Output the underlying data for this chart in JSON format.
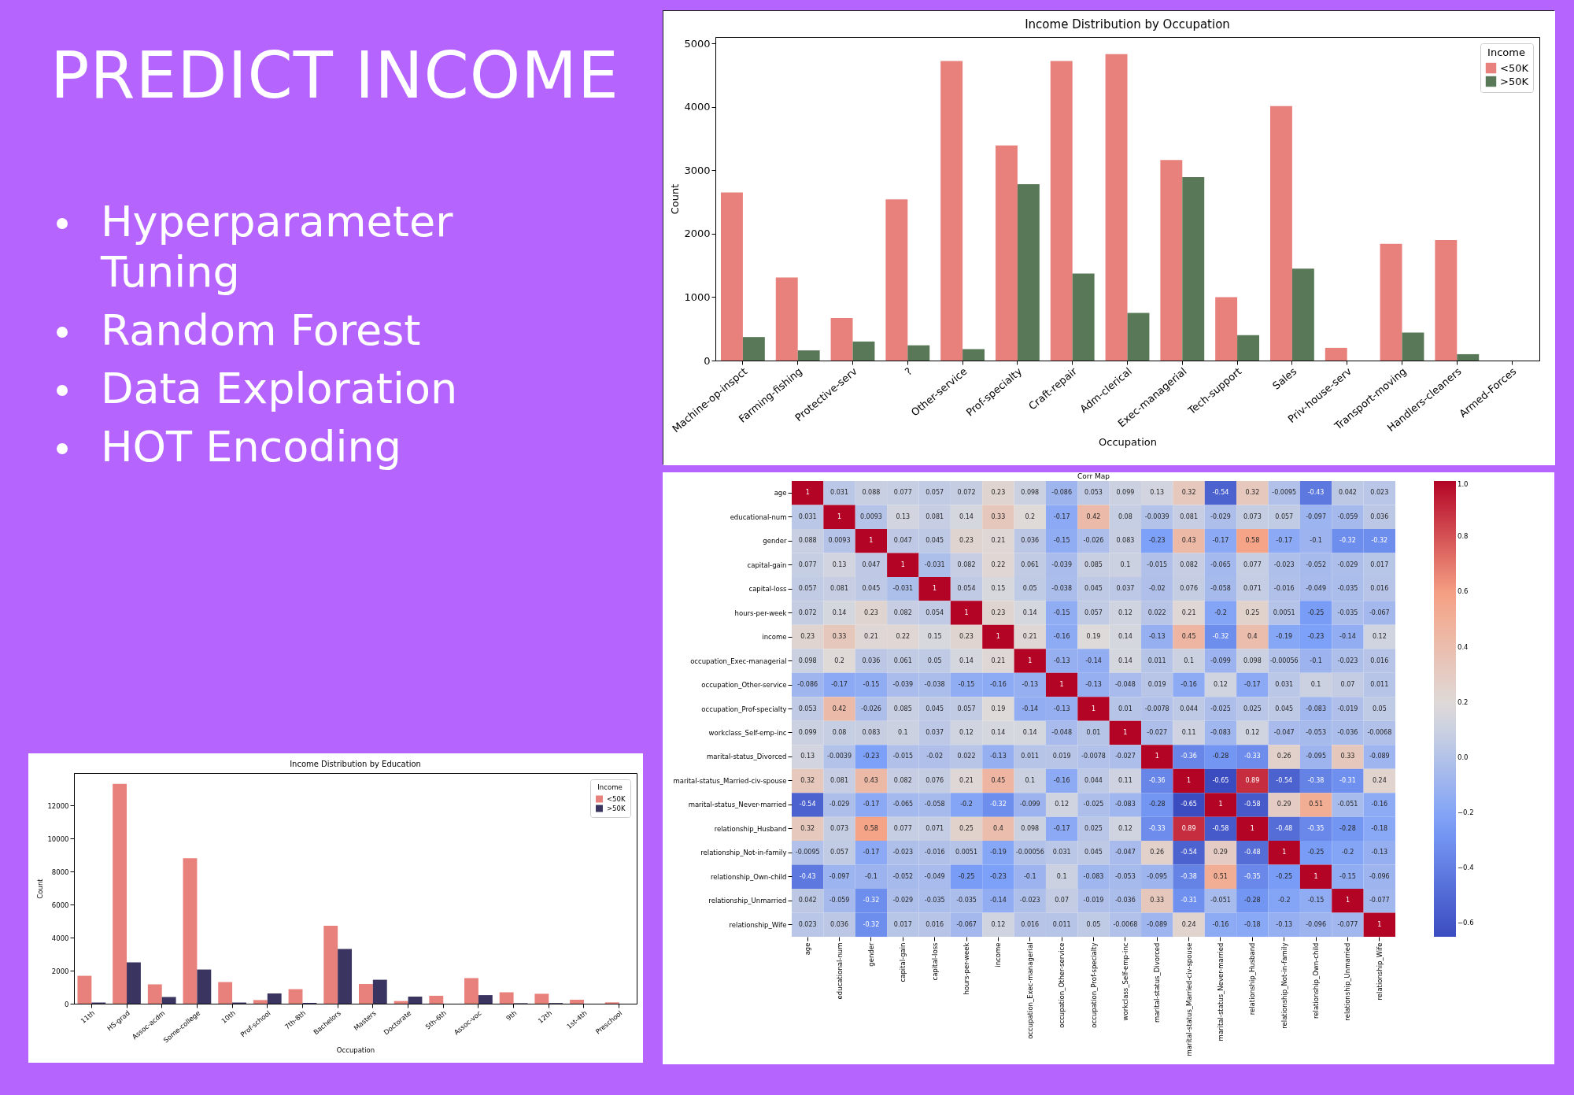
{
  "chart_data": [
    {
      "type": "other",
      "title": "PREDICT INCOME",
      "annotations": [
        "Hyperparameter Tuning",
        "Random Forest",
        "Data Exploration",
        "HOT Encoding"
      ]
    },
    {
      "type": "bar",
      "title": "Income Distribution by Occupation",
      "xlabel": "Occupation",
      "ylabel": "Count",
      "legend_title": "Income",
      "legend": "top right",
      "categories": [
        "Machine-op-inspct",
        "Farming-fishing",
        "Protective-serv",
        "?",
        "Other-service",
        "Prof-specialty",
        "Craft-repair",
        "Adm-clerical",
        "Exec-managerial",
        "Tech-support",
        "Sales",
        "Priv-house-serv",
        "Transport-moving",
        "Handlers-cleaners",
        "Armed-Forces"
      ],
      "series": [
        {
          "name": "<50K",
          "color": "#e8807c",
          "values": [
            2650,
            1310,
            670,
            2540,
            4720,
            3390,
            4720,
            4830,
            3160,
            1000,
            4010,
            200,
            1840,
            1900,
            0
          ]
        },
        {
          "name": ">50K",
          "color": "#587858",
          "values": [
            370,
            160,
            300,
            240,
            180,
            2780,
            1370,
            750,
            2890,
            400,
            1450,
            0,
            440,
            100,
            0
          ]
        }
      ],
      "ylim": [
        0,
        5100
      ],
      "yticks": [
        0,
        1000,
        2000,
        3000,
        4000,
        5000
      ]
    },
    {
      "type": "heatmap",
      "title": "Corr Map",
      "data_labels": true,
      "categories": [
        "age",
        "educational-num",
        "gender",
        "capital-gain",
        "capital-loss",
        "hours-per-week",
        "income",
        "occupation_Exec-managerial",
        "occupation_Other-service",
        "occupation_Prof-specialty",
        "workclass_Self-emp-inc",
        "marital-status_Divorced",
        "marital-status_Married-civ-spouse",
        "marital-status_Never-married",
        "relationship_Husband",
        "relationship_Not-in-family",
        "relationship_Own-child",
        "relationship_Unmarried",
        "relationship_Wife"
      ],
      "y_categories": [
        "age",
        "educational-num",
        "gender",
        "capital-gain",
        "capital-loss",
        "hours-per-week",
        "income",
        "occupation_Exec-managerial",
        "occupation_Other-service",
        "occupation_Prof-specialty",
        "workclass_Self-emp-inc",
        "marital-status_Divorced",
        "marital-status_Married-civ-spouse",
        "marital-status_Never-married",
        "relationship_Husband",
        "relationship_Not-in-family",
        "relationship_Own-child",
        "relationship_Unmarried",
        "relationship_Wife"
      ],
      "cells": [
        [
          1,
          0.031,
          0.088,
          0.077,
          0.057,
          0.072,
          0.23,
          0.098,
          -0.086,
          0.053,
          0.099,
          0.13,
          0.32,
          -0.54,
          0.32,
          -0.0095,
          -0.43,
          0.042,
          0.023
        ],
        [
          0.031,
          1,
          0.0093,
          0.13,
          0.081,
          0.14,
          0.33,
          0.2,
          -0.17,
          0.42,
          0.08,
          -0.0039,
          0.081,
          -0.029,
          0.073,
          0.057,
          -0.097,
          -0.059,
          0.036
        ],
        [
          0.088,
          0.0093,
          1,
          0.047,
          0.045,
          0.23,
          0.21,
          0.036,
          -0.15,
          -0.026,
          0.083,
          -0.23,
          0.43,
          -0.17,
          0.58,
          -0.17,
          -0.1,
          -0.32,
          -0.32
        ],
        [
          0.077,
          0.13,
          0.047,
          1,
          -0.031,
          0.082,
          0.22,
          0.061,
          -0.039,
          0.085,
          0.1,
          -0.015,
          0.082,
          -0.065,
          0.077,
          -0.023,
          -0.052,
          -0.029,
          0.017
        ],
        [
          0.057,
          0.081,
          0.045,
          -0.031,
          1,
          0.054,
          0.15,
          0.05,
          -0.038,
          0.045,
          0.037,
          -0.02,
          0.076,
          -0.058,
          0.071,
          -0.016,
          -0.049,
          -0.035,
          0.016
        ],
        [
          0.072,
          0.14,
          0.23,
          0.082,
          0.054,
          1,
          0.23,
          0.14,
          -0.15,
          0.057,
          0.12,
          0.022,
          0.21,
          -0.2,
          0.25,
          0.0051,
          -0.25,
          -0.035,
          -0.067
        ],
        [
          0.23,
          0.33,
          0.21,
          0.22,
          0.15,
          0.23,
          1,
          0.21,
          -0.16,
          0.19,
          0.14,
          -0.13,
          0.45,
          -0.32,
          0.4,
          -0.19,
          -0.23,
          -0.14,
          0.12
        ],
        [
          0.098,
          0.2,
          0.036,
          0.061,
          0.05,
          0.14,
          0.21,
          1,
          -0.13,
          -0.14,
          0.14,
          0.011,
          0.1,
          -0.099,
          0.098,
          -0.00056,
          -0.1,
          -0.023,
          0.016
        ],
        [
          -0.086,
          -0.17,
          -0.15,
          -0.039,
          -0.038,
          -0.15,
          -0.16,
          -0.13,
          1,
          -0.13,
          -0.048,
          0.019,
          -0.16,
          0.12,
          -0.17,
          0.031,
          0.1,
          0.07,
          0.011
        ],
        [
          0.053,
          0.42,
          -0.026,
          0.085,
          0.045,
          0.057,
          0.19,
          -0.14,
          -0.13,
          1,
          0.01,
          -0.0078,
          0.044,
          -0.025,
          0.025,
          0.045,
          -0.083,
          -0.019,
          0.05
        ],
        [
          0.099,
          0.08,
          0.083,
          0.1,
          0.037,
          0.12,
          0.14,
          0.14,
          -0.048,
          0.01,
          1,
          -0.027,
          0.11,
          -0.083,
          0.12,
          -0.047,
          -0.053,
          -0.036,
          -0.0068
        ],
        [
          0.13,
          -0.0039,
          -0.23,
          -0.015,
          -0.02,
          0.022,
          -0.13,
          0.011,
          0.019,
          -0.0078,
          -0.027,
          1,
          -0.36,
          -0.28,
          -0.33,
          0.26,
          -0.095,
          0.33,
          -0.089
        ],
        [
          0.32,
          0.081,
          0.43,
          0.082,
          0.076,
          0.21,
          0.45,
          0.1,
          -0.16,
          0.044,
          0.11,
          -0.36,
          1,
          -0.65,
          0.89,
          -0.54,
          -0.38,
          -0.31,
          0.24
        ],
        [
          -0.54,
          -0.029,
          -0.17,
          -0.065,
          -0.058,
          -0.2,
          -0.32,
          -0.099,
          0.12,
          -0.025,
          -0.083,
          -0.28,
          -0.65,
          1,
          -0.58,
          0.29,
          0.51,
          -0.051,
          -0.16
        ],
        [
          0.32,
          0.073,
          0.58,
          0.077,
          0.071,
          0.25,
          0.4,
          0.098,
          -0.17,
          0.025,
          0.12,
          -0.33,
          0.89,
          -0.58,
          1,
          -0.48,
          -0.35,
          -0.28,
          -0.18
        ],
        [
          -0.0095,
          0.057,
          -0.17,
          -0.023,
          -0.016,
          0.0051,
          -0.19,
          -0.00056,
          0.031,
          0.045,
          -0.047,
          0.26,
          -0.54,
          0.29,
          -0.48,
          1,
          -0.25,
          -0.2,
          -0.13
        ],
        [
          -0.43,
          -0.097,
          -0.1,
          -0.052,
          -0.049,
          -0.25,
          -0.23,
          -0.1,
          0.1,
          -0.083,
          -0.053,
          -0.095,
          -0.38,
          0.51,
          -0.35,
          -0.25,
          1,
          -0.15,
          -0.096
        ],
        [
          0.042,
          -0.059,
          -0.32,
          -0.029,
          -0.035,
          -0.035,
          -0.14,
          -0.023,
          0.07,
          -0.019,
          -0.036,
          0.33,
          -0.31,
          -0.051,
          -0.28,
          -0.2,
          -0.15,
          1,
          -0.077
        ],
        [
          0.023,
          0.036,
          -0.32,
          0.017,
          0.016,
          -0.067,
          0.12,
          0.016,
          0.011,
          0.05,
          -0.0068,
          -0.089,
          0.24,
          -0.16,
          -0.18,
          -0.13,
          -0.096,
          -0.077,
          1
        ]
      ],
      "clim": [
        -0.65,
        1
      ],
      "cticks": [
        {
          "value": -0.6,
          "label": "−0.6"
        },
        {
          "value": -0.4,
          "label": "−0.4"
        },
        {
          "value": -0.2,
          "label": "−0.2"
        },
        {
          "value": 0,
          "label": "0.0"
        },
        {
          "value": 0.2,
          "label": "0.2"
        },
        {
          "value": 0.4,
          "label": "0.4"
        },
        {
          "value": 0.6,
          "label": "0.6"
        },
        {
          "value": 0.8,
          "label": "0.8"
        },
        {
          "value": 1,
          "label": "1.0"
        }
      ]
    },
    {
      "type": "bar",
      "title": "Income Distribution by Education",
      "xlabel": "Occupation",
      "ylabel": "Count",
      "legend_title": "Income",
      "legend": "top right",
      "categories": [
        "11th",
        "HS-grad",
        "Assoc-acdm",
        "Some-college",
        "10th",
        "Prof-school",
        "7th-8th",
        "Bachelors",
        "Masters",
        "Doctorate",
        "5th-6th",
        "Assoc-voc",
        "9th",
        "12th",
        "1st-4th",
        "Preschool"
      ],
      "series": [
        {
          "name": "<50K",
          "color": "#e8807c",
          "values": [
            1690,
            13310,
            1170,
            8810,
            1310,
            220,
            880,
            4720,
            1190,
            160,
            480,
            1550,
            690,
            600,
            240,
            80
          ]
        },
        {
          "name": ">50K",
          "color": "#3a3560",
          "values": [
            70,
            2500,
            405,
            2070,
            70,
            620,
            50,
            3310,
            1450,
            430,
            0,
            520,
            30,
            40,
            0,
            0
          ]
        }
      ],
      "ylim": [
        0,
        13970
      ],
      "yticks": [
        0,
        2000,
        4000,
        6000,
        8000,
        10000,
        12000
      ]
    }
  ]
}
